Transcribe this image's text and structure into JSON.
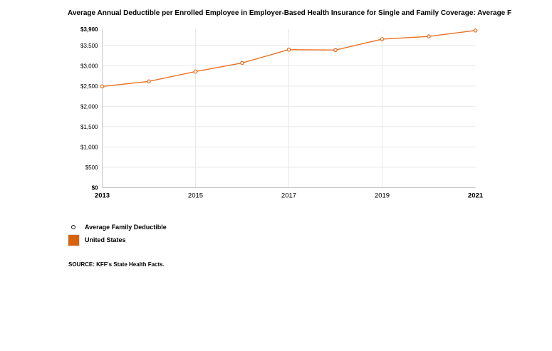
{
  "title": "Average Annual Deductible per Enrolled Employee in Employer-Based Health Insurance for Single and Family Coverage: Average F",
  "chart_data": {
    "type": "line",
    "x": [
      2013,
      2014,
      2015,
      2016,
      2017,
      2018,
      2019,
      2020,
      2021
    ],
    "series": [
      {
        "name": "Average Family Deductible",
        "region": "United States",
        "values": [
          2491,
          2614,
          2858,
          3069,
          3396,
          3386,
          3655,
          3722,
          3868
        ]
      }
    ],
    "xlim": [
      2013,
      2021
    ],
    "ylim": [
      0,
      3900
    ],
    "xlabel": "",
    "ylabel": "",
    "grid": "on",
    "legend_position": "bottom-left",
    "y_ticks": [
      {
        "v": 3900,
        "label": "$3,900",
        "bold": true,
        "grid": false
      },
      {
        "v": 3500,
        "label": "$3,500",
        "bold": false,
        "grid": true
      },
      {
        "v": 3000,
        "label": "$3,000",
        "bold": false,
        "grid": true
      },
      {
        "v": 2500,
        "label": "$2,500",
        "bold": false,
        "grid": true
      },
      {
        "v": 2000,
        "label": "$2,000",
        "bold": false,
        "grid": true
      },
      {
        "v": 1500,
        "label": "$1,500",
        "bold": false,
        "grid": true
      },
      {
        "v": 1000,
        "label": "$1,000",
        "bold": false,
        "grid": true
      },
      {
        "v": 500,
        "label": "$500",
        "bold": false,
        "grid": true
      },
      {
        "v": 0,
        "label": "$0",
        "bold": true,
        "grid": false
      }
    ],
    "x_ticks": [
      {
        "v": 2013,
        "label": "2013",
        "bold": true,
        "grid": false
      },
      {
        "v": 2015,
        "label": "2015",
        "bold": false,
        "grid": true
      },
      {
        "v": 2017,
        "label": "2017",
        "bold": false,
        "grid": true
      },
      {
        "v": 2019,
        "label": "2019",
        "bold": false,
        "grid": true
      },
      {
        "v": 2021,
        "label": "2021",
        "bold": true,
        "grid": false
      }
    ]
  },
  "legend": {
    "series_label": "Average Family Deductible",
    "region_label": "United States"
  },
  "source": "SOURCE: KFF's State Health Facts.",
  "colors": {
    "line": "#E87124",
    "marker_fill": "#ffffff",
    "swatch": "#D9630B",
    "grid": "#e8e8e8",
    "axis": "#c9c9c9",
    "text": "#000000"
  }
}
